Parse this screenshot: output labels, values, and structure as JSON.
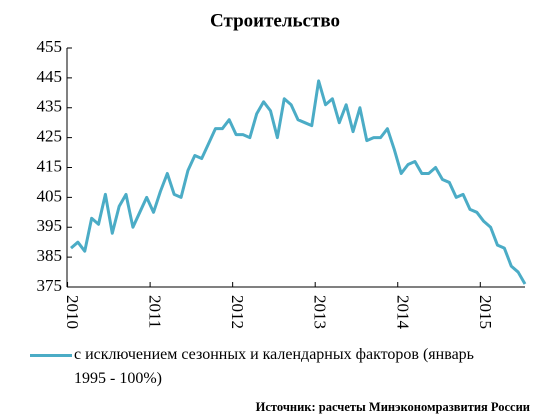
{
  "chart_data": {
    "type": "line",
    "title": "Строительство",
    "categories": [
      "2010",
      null,
      null,
      null,
      null,
      null,
      null,
      null,
      null,
      null,
      null,
      null,
      "2011",
      null,
      null,
      null,
      null,
      null,
      null,
      null,
      null,
      null,
      null,
      null,
      "2012",
      null,
      null,
      null,
      null,
      null,
      null,
      null,
      null,
      null,
      null,
      null,
      "2013",
      null,
      null,
      null,
      null,
      null,
      null,
      null,
      null,
      null,
      null,
      null,
      "2014",
      null,
      null,
      null,
      null,
      null,
      null,
      null,
      null,
      null,
      null,
      null,
      "2015",
      null,
      null,
      null,
      null,
      null,
      null
    ],
    "series": [
      {
        "name": "с исключением сезонных и календарных факторов (январь 1995 - 100%)",
        "color": "#4bacc6",
        "values": [
          388,
          390,
          387,
          398,
          396,
          406,
          393,
          402,
          406,
          395,
          400,
          405,
          400,
          407,
          413,
          406,
          405,
          414,
          419,
          418,
          423,
          428,
          428,
          431,
          426,
          426,
          425,
          433,
          437,
          434,
          425,
          438,
          436,
          431,
          430,
          429,
          444,
          436,
          438,
          430,
          436,
          427,
          435,
          424,
          425,
          425,
          428,
          421,
          413,
          416,
          417,
          413,
          413,
          415,
          411,
          410,
          405,
          406,
          401,
          400,
          397,
          395,
          389,
          388,
          382,
          380,
          376
        ]
      }
    ],
    "ylim": [
      375,
      455
    ],
    "yticks": [
      375,
      385,
      395,
      405,
      415,
      425,
      435,
      445,
      455
    ],
    "source": "Источник: расчеты Минэкономразвития России"
  }
}
